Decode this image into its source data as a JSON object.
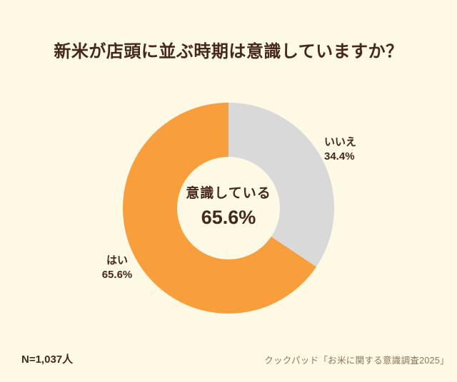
{
  "title": "新米が店頭に並ぶ時期は意識していますか？",
  "chart_data": {
    "type": "pie",
    "subtype": "donut",
    "title": "新米が店頭に並ぶ時期は意識していますか？",
    "categories": [
      "いいえ",
      "はい"
    ],
    "values": [
      34.4,
      65.6
    ],
    "slices": [
      {
        "label": "いいえ",
        "value": 34.4,
        "display": "34.4%",
        "color": "#D9D9D9"
      },
      {
        "label": "はい",
        "value": 65.6,
        "display": "65.6%",
        "color": "#F99E3C"
      }
    ],
    "start_angle_deg": 0,
    "direction": "clockwise",
    "center_label": "意識している",
    "center_value": "65.6%",
    "legend_position": "outside-labels",
    "total": 100
  },
  "footer": {
    "sample_size": "N=1,037人",
    "source": "クックパッド「お米に関する意識調査2025」"
  },
  "colors": {
    "background": "#FDF9E4",
    "text": "#46281A",
    "source_text": "#8C7659",
    "slice_yes": "#F99E3C",
    "slice_no": "#D9D9D9"
  }
}
